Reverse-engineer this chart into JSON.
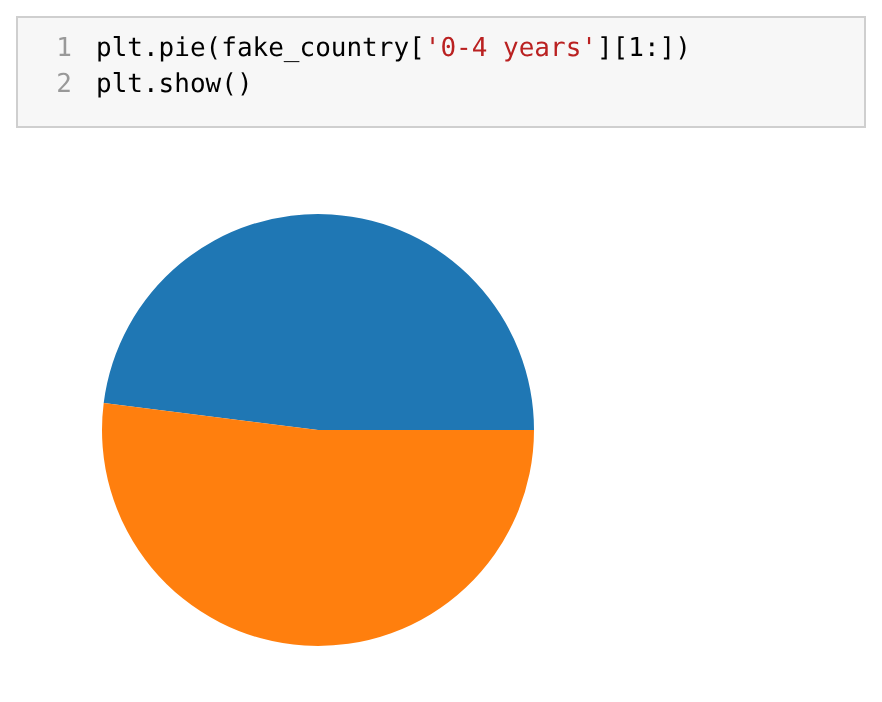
{
  "chart_data": {
    "type": "pie",
    "categories": [
      null,
      null
    ],
    "values": [
      48,
      52
    ],
    "colors": [
      "#1f77b4",
      "#ff7f0e"
    ],
    "annotations": [
      "1",
      "plt.pie(fake_country['0-4 years'][1:])",
      "2",
      "plt.show()"
    ]
  }
}
